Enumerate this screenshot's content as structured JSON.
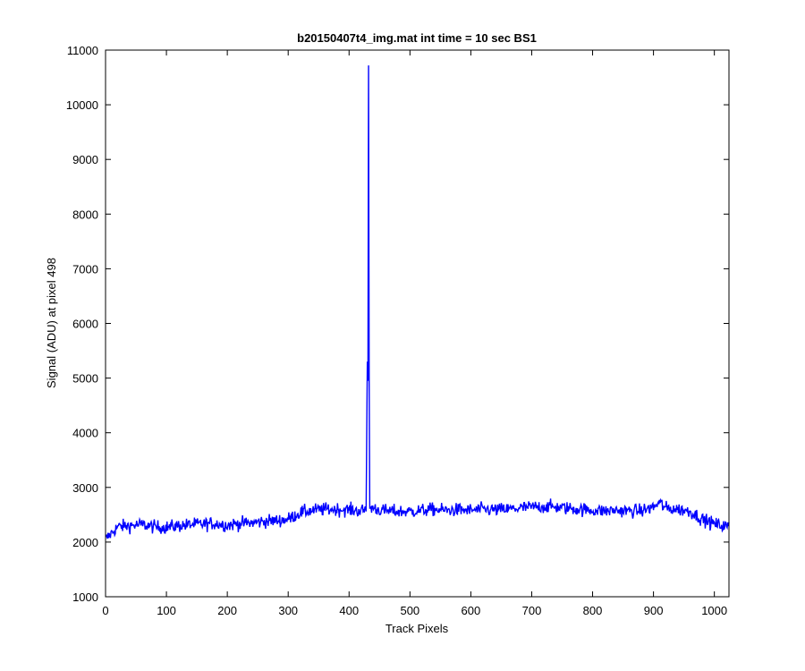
{
  "chart_data": {
    "type": "line",
    "title": "b20150407t4_img.mat int time = 10 sec   BS1",
    "xlabel": "Track Pixels",
    "ylabel": "Signal (ADU) at pixel 498",
    "xlim": [
      0,
      1024
    ],
    "ylim": [
      1000,
      11000
    ],
    "x_ticks": [
      0,
      100,
      200,
      300,
      400,
      500,
      600,
      700,
      800,
      900,
      1000
    ],
    "y_ticks": [
      1000,
      2000,
      3000,
      4000,
      5000,
      6000,
      7000,
      8000,
      9000,
      10000,
      11000
    ],
    "grid": false,
    "legend": "none",
    "series": [
      {
        "color": "#0000ff",
        "x": [
          0,
          20,
          40,
          60,
          80,
          100,
          120,
          140,
          160,
          180,
          200,
          220,
          240,
          260,
          280,
          300,
          320,
          340,
          360,
          380,
          400,
          420,
          428,
          430,
          431,
          432,
          433,
          434,
          436,
          440,
          445,
          460,
          480,
          500,
          520,
          540,
          560,
          580,
          600,
          620,
          640,
          660,
          680,
          700,
          720,
          740,
          760,
          780,
          800,
          820,
          840,
          860,
          880,
          900,
          910,
          920,
          940,
          960,
          980,
          1000,
          1024
        ],
        "y": [
          2050,
          2280,
          2300,
          2320,
          2280,
          2270,
          2300,
          2320,
          2330,
          2340,
          2310,
          2340,
          2350,
          2380,
          2390,
          2420,
          2540,
          2580,
          2600,
          2600,
          2590,
          2570,
          2600,
          5300,
          4950,
          10720,
          4950,
          2620,
          2620,
          2630,
          2600,
          2570,
          2560,
          2560,
          2580,
          2600,
          2580,
          2590,
          2580,
          2600,
          2590,
          2600,
          2620,
          2640,
          2650,
          2640,
          2620,
          2600,
          2580,
          2570,
          2580,
          2570,
          2570,
          2640,
          2720,
          2620,
          2600,
          2560,
          2420,
          2330,
          2280
        ]
      }
    ]
  }
}
